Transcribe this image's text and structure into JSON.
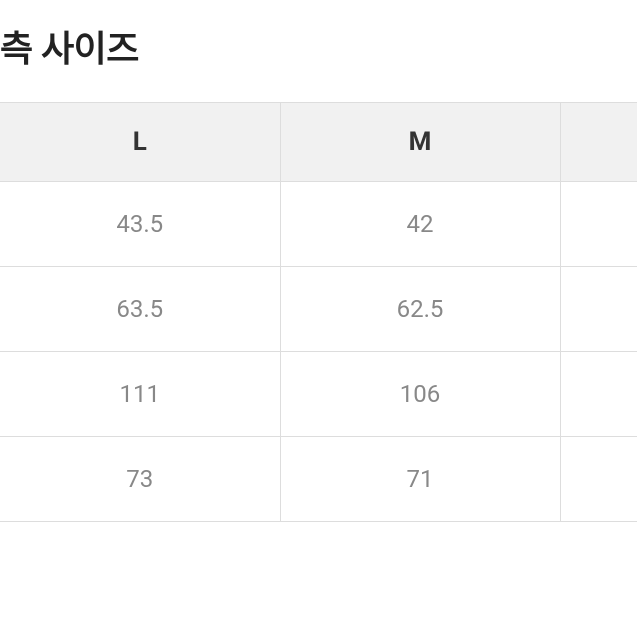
{
  "title": "측 사이즈",
  "table": {
    "columns": [
      "L",
      "M",
      ""
    ],
    "rows": [
      [
        "43.5",
        "42",
        ""
      ],
      [
        "63.5",
        "62.5",
        ""
      ],
      [
        "111",
        "106",
        ""
      ],
      [
        "73",
        "71",
        ""
      ]
    ],
    "header_bg": "#f1f1f1",
    "border_color": "#dddddd",
    "header_color": "#333333",
    "cell_color": "#888888",
    "header_fontsize": 26,
    "cell_fontsize": 24
  }
}
